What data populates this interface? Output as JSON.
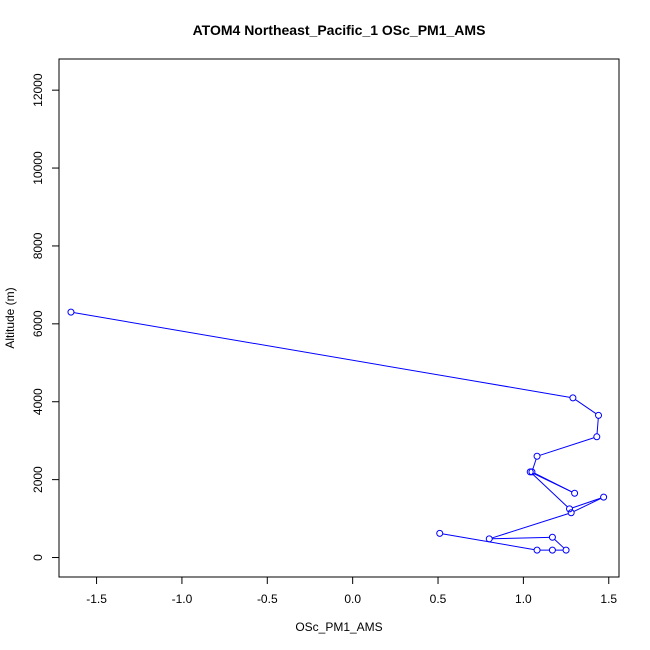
{
  "chart_data": {
    "type": "line",
    "title": "ATOM4 Northeast_Pacific_1 OSc_PM1_AMS",
    "xlabel": "OSc_PM1_AMS",
    "ylabel": "Altitude (m)",
    "xlim": [
      -1.72,
      1.56
    ],
    "ylim": [
      -500,
      12800
    ],
    "x_ticks": [
      -1.5,
      -1.0,
      -0.5,
      0.0,
      0.5,
      1.0,
      1.5
    ],
    "x_tick_labels": [
      "-1.5",
      "-1.0",
      "-0.5",
      "0.0",
      "0.5",
      "1.0",
      "1.5"
    ],
    "y_ticks": [
      0,
      2000,
      4000,
      6000,
      8000,
      10000,
      12000
    ],
    "y_tick_labels": [
      "0",
      "2000",
      "4000",
      "6000",
      "8000",
      "10000",
      "12000"
    ],
    "series": [
      {
        "color": "#0000ff",
        "marker": "open-circle",
        "x": [
          -1.65,
          1.29,
          1.44,
          1.43,
          1.08,
          1.05,
          1.3,
          1.04,
          1.27,
          1.47,
          1.28,
          0.8,
          1.17,
          1.25,
          1.17,
          1.08,
          0.51
        ],
        "y": [
          6300,
          4100,
          3650,
          3100,
          2600,
          2200,
          1650,
          2200,
          1250,
          1550,
          1150,
          480,
          520,
          190,
          190,
          190,
          620
        ]
      }
    ]
  }
}
